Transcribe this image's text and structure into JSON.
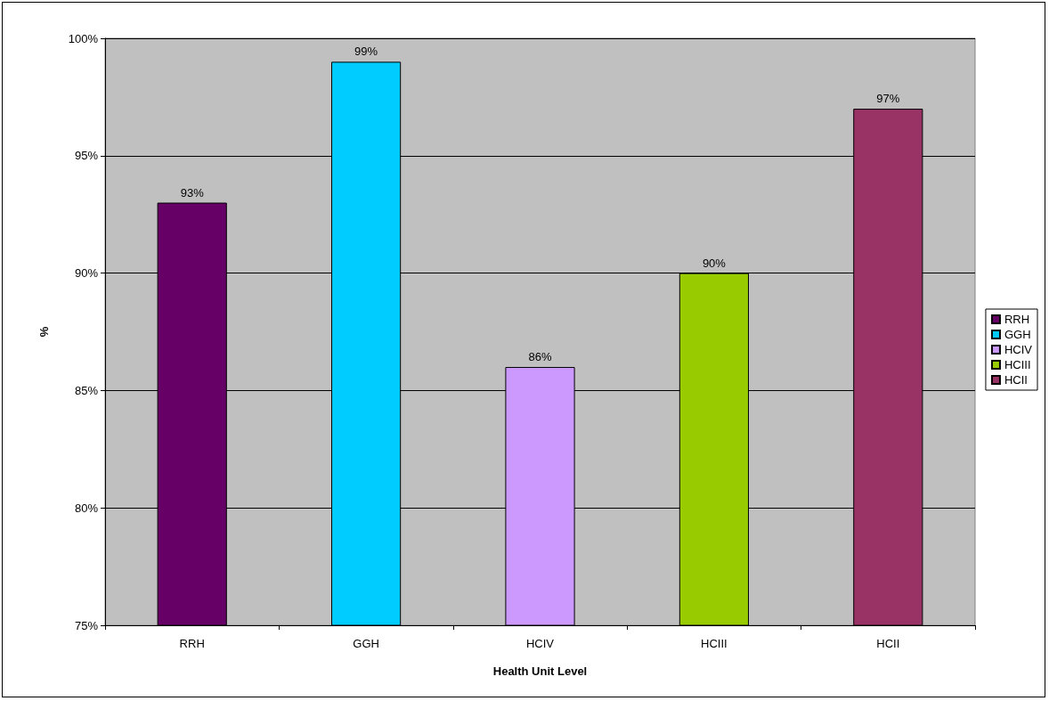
{
  "chart_data": {
    "type": "bar",
    "xlabel": "Health Unit Level",
    "ylabel": "%",
    "categories": [
      "RRH",
      "GGH",
      "HCIV",
      "HCIII",
      "HCII"
    ],
    "series": [
      {
        "name": "RRH",
        "color": "#660066",
        "values": [
          93,
          null,
          null,
          null,
          null
        ],
        "value_labels": [
          "93%",
          null,
          null,
          null,
          null
        ]
      },
      {
        "name": "GGH",
        "color": "#00ccff",
        "values": [
          null,
          99,
          null,
          null,
          null
        ],
        "value_labels": [
          null,
          "99%",
          null,
          null,
          null
        ]
      },
      {
        "name": "HCIV",
        "color": "#cc99ff",
        "values": [
          null,
          null,
          86,
          null,
          null
        ],
        "value_labels": [
          null,
          null,
          "86%",
          null,
          null
        ]
      },
      {
        "name": "HCIII",
        "color": "#99cc00",
        "values": [
          null,
          null,
          null,
          90,
          null
        ],
        "value_labels": [
          null,
          null,
          null,
          "90%",
          null
        ]
      },
      {
        "name": "HCII",
        "color": "#993366",
        "values": [
          null,
          null,
          null,
          null,
          97
        ],
        "value_labels": [
          null,
          null,
          null,
          null,
          "97%"
        ]
      }
    ],
    "ylim": [
      75,
      100
    ],
    "yticks": [
      {
        "value": 75,
        "label": "75%"
      },
      {
        "value": 80,
        "label": "80%"
      },
      {
        "value": 85,
        "label": "85%"
      },
      {
        "value": 90,
        "label": "90%"
      },
      {
        "value": 95,
        "label": "95%"
      },
      {
        "value": 100,
        "label": "100%"
      }
    ],
    "grid": "y",
    "legend": "right"
  }
}
